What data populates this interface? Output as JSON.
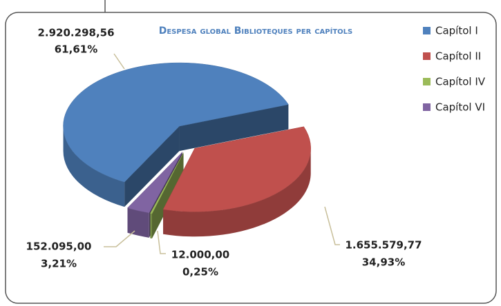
{
  "chart_data": {
    "type": "pie",
    "title": "Despesa global Biblioteques per capítols",
    "categories": [
      "Capítol I",
      "Capítol II",
      "Capítol IV",
      "Capítol VI"
    ],
    "values": [
      2920298.56,
      1655579.77,
      12000.0,
      152095.0
    ],
    "value_labels": [
      "2.920.298,56",
      "1.655.579,77",
      "12.000,00",
      "152.095,00"
    ],
    "percentages": [
      61.61,
      34.93,
      0.25,
      3.21
    ],
    "percentage_labels": [
      "61,61%",
      "34,93%",
      "0,25%",
      "3,21%"
    ],
    "colors": [
      "#4f81bd",
      "#c0504d",
      "#9bbb59",
      "#8064a2"
    ],
    "legend": "right"
  }
}
